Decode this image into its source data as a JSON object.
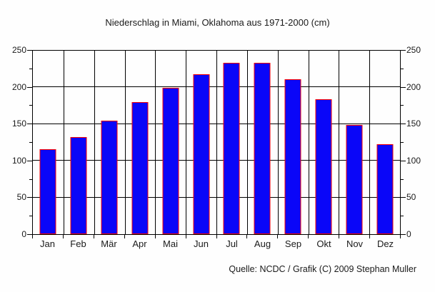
{
  "title": "Niederschlag in Miami, Oklahoma aus 1971-2000 (cm)",
  "footer": "Quelle: NCDC / Grafik (C) 2009 Stephan Muller",
  "chart_data": {
    "type": "bar",
    "title": "Niederschlag in Miami, Oklahoma aus 1971-2000 (cm)",
    "categories": [
      "Jan",
      "Feb",
      "Mär",
      "Apr",
      "Mai",
      "Jun",
      "Jul",
      "Aug",
      "Sep",
      "Okt",
      "Nov",
      "Dez"
    ],
    "values": [
      116,
      132,
      155,
      180,
      199,
      218,
      233,
      233,
      211,
      184,
      149,
      123
    ],
    "xlabel": "",
    "ylabel": "",
    "ylim": [
      0,
      250
    ],
    "y_ticks": [
      0,
      50,
      100,
      150,
      200,
      250
    ],
    "y_minor_step": 25,
    "grid": true,
    "legend": "none",
    "dual_y_axis_labels": true,
    "bar_fill_color": "#0a06f8",
    "bar_border_color": "#fa0000",
    "gridline_color": "#000000",
    "background_color": "#fefefe",
    "source_note": "Quelle: NCDC / Grafik (C) 2009 Stephan Muller"
  }
}
